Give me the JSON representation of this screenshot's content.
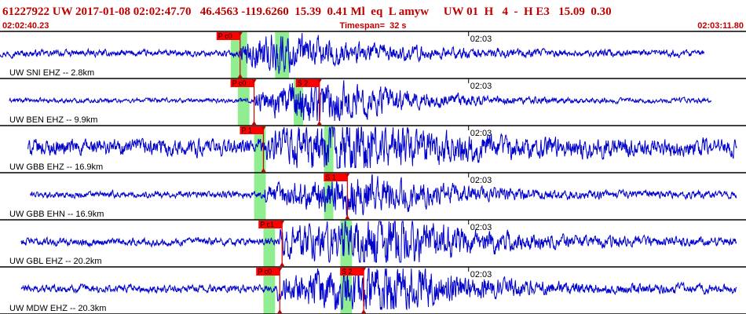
{
  "header": {
    "line": "61227922 UW 2017-01-08 02:02:47.70   46.4563 -119.6260  15.39  0.41 Ml  eq  L amyw     UW 01  H   4  -  H E3   15.09  0.30",
    "start_time": "02:02:40.23",
    "timespan": "Timespan=  32 s",
    "end_time": "02:03:11.80"
  },
  "colors": {
    "trace": "#0000cc",
    "pick_line": "#cc0000",
    "pick_box": "#ff0000",
    "window": "#90ee90",
    "header_text": "#c00000",
    "panel_border": "#000000"
  },
  "chart_data": {
    "type": "line",
    "title": "61227922 UW 2017-01-08 02:02:47.70   46.4563 -119.6260  15.39  0.41 Ml  eq  L amyw     UW 01  H   4  -  H E3   15.09  0.30",
    "time_axis": {
      "start": "02:02:40.23",
      "end": "02:03:11.80",
      "span_s": 32,
      "tick_label": "02:03"
    },
    "panels": [
      {
        "label": "UW SNI EHZ -- 2.8km",
        "data_start_s": 0,
        "data_end_s": 30.2,
        "noise_amp": 0.12,
        "signal_amp": 0.7,
        "onset_s": 10.3,
        "peak_s": 11.8,
        "decay_s": 9,
        "picks": [
          {
            "label": "P c0",
            "t": 10.3
          }
        ],
        "windows": [
          [
            9.9,
            10.6
          ],
          [
            11.8,
            12.4
          ]
        ]
      },
      {
        "label": "UW BEN EHZ -- 9.9km",
        "data_start_s": 0.4,
        "data_end_s": 30.5,
        "noise_amp": 0.08,
        "signal_amp": 0.85,
        "onset_s": 10.9,
        "peak_s": 13.9,
        "decay_s": 8,
        "picks": [
          {
            "label": "P c0",
            "t": 10.9
          },
          {
            "label": "S 2",
            "t": 13.7
          }
        ],
        "windows": [
          [
            10.2,
            10.7
          ],
          [
            12.6,
            13.0
          ]
        ]
      },
      {
        "label": "UW GBB EHZ -- 16.9km",
        "data_start_s": 1.2,
        "data_end_s": 31.6,
        "noise_amp": 0.3,
        "signal_amp": 0.8,
        "onset_s": 11.3,
        "peak_s": 15.0,
        "decay_s": 9,
        "picks": [
          {
            "label": "P 1",
            "t": 11.3
          }
        ],
        "windows": [
          [
            10.9,
            11.4
          ],
          [
            13.9,
            14.3
          ]
        ]
      },
      {
        "label": "UW GBB EHN -- 16.9km",
        "data_start_s": 1.3,
        "data_end_s": 31.6,
        "noise_amp": 0.12,
        "signal_amp": 0.7,
        "onset_s": 11.3,
        "peak_s": 15.3,
        "decay_s": 9,
        "picks": [
          {
            "label": "S 1",
            "t": 14.9
          }
        ],
        "windows": [
          [
            10.9,
            11.4
          ],
          [
            13.9,
            14.3
          ]
        ]
      },
      {
        "label": "UW GBL EHZ -- 20.2km",
        "data_start_s": 0.9,
        "data_end_s": 31.6,
        "noise_amp": 0.14,
        "signal_amp": 0.9,
        "onset_s": 12.0,
        "peak_s": 16.6,
        "decay_s": 9,
        "picks": [
          {
            "label": "P c1",
            "t": 12.1
          }
        ],
        "windows": [
          [
            11.3,
            11.8
          ],
          [
            14.6,
            15.1
          ]
        ]
      },
      {
        "label": "UW MDW EHZ -- 20.3km",
        "data_start_s": 0.9,
        "data_end_s": 31.6,
        "noise_amp": 0.14,
        "signal_amp": 0.9,
        "onset_s": 11.9,
        "peak_s": 16.4,
        "decay_s": 9,
        "picks": [
          {
            "label": "P c0",
            "t": 12.0
          },
          {
            "label": "S 2",
            "t": 15.6
          }
        ],
        "windows": [
          [
            11.3,
            11.8
          ],
          [
            14.6,
            15.1
          ]
        ]
      }
    ],
    "grid": false
  }
}
